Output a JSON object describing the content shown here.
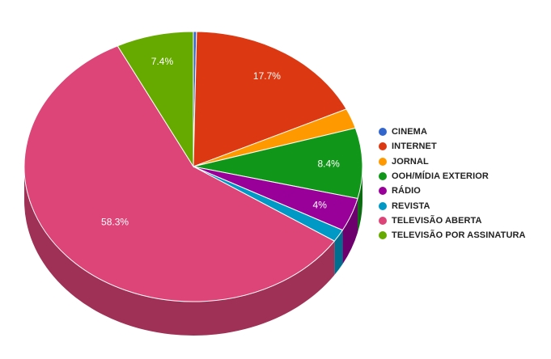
{
  "chart_data": {
    "type": "pie",
    "style": "3d",
    "legend_position": "right",
    "series": [
      {
        "name": "CINEMA",
        "value": 0.3,
        "label": "",
        "color": "#3366cc"
      },
      {
        "name": "INTERNET",
        "value": 17.7,
        "label": "17.7%",
        "color": "#dc3912"
      },
      {
        "name": "JORNAL",
        "value": 2.4,
        "label": "",
        "color": "#ff9900"
      },
      {
        "name": "OOH/MÍDIA EXTERIOR",
        "value": 8.4,
        "label": "8.4%",
        "color": "#109618"
      },
      {
        "name": "RÁDIO",
        "value": 4.0,
        "label": "4%",
        "color": "#990099"
      },
      {
        "name": "REVISTA",
        "value": 1.5,
        "label": "",
        "color": "#0099c6"
      },
      {
        "name": "TELEVISÃO ABERTA",
        "value": 58.3,
        "label": "58.3%",
        "color": "#dd4477"
      },
      {
        "name": "TELEVISÃO POR ASSINATURA",
        "value": 7.4,
        "label": "7.4%",
        "color": "#66aa00"
      }
    ]
  }
}
